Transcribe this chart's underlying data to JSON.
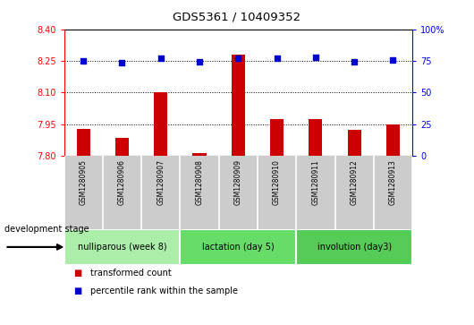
{
  "title": "GDS5361 / 10409352",
  "samples": [
    "GSM1280905",
    "GSM1280906",
    "GSM1280907",
    "GSM1280908",
    "GSM1280909",
    "GSM1280910",
    "GSM1280911",
    "GSM1280912",
    "GSM1280913"
  ],
  "transformed_counts": [
    7.93,
    7.885,
    8.1,
    7.815,
    8.28,
    7.975,
    7.975,
    7.925,
    7.95
  ],
  "percentile_ranks": [
    75,
    73.5,
    77,
    74.5,
    77,
    77,
    78,
    74.5,
    75.5
  ],
  "ylim_left": [
    7.8,
    8.4
  ],
  "ylim_right": [
    0,
    100
  ],
  "yticks_left": [
    7.8,
    7.95,
    8.1,
    8.25,
    8.4
  ],
  "yticks_right": [
    0,
    25,
    50,
    75,
    100
  ],
  "bar_color": "#cc0000",
  "dot_color": "#0000cc",
  "groups": [
    {
      "label": "nulliparous (week 8)",
      "start": 0,
      "end": 3,
      "color": "#aaeeaa"
    },
    {
      "label": "lactation (day 5)",
      "start": 3,
      "end": 6,
      "color": "#66dd66"
    },
    {
      "label": "involution (day3)",
      "start": 6,
      "end": 9,
      "color": "#55cc55"
    }
  ],
  "legend_items": [
    {
      "label": "transformed count",
      "color": "#cc0000"
    },
    {
      "label": "percentile rank within the sample",
      "color": "#0000cc"
    }
  ],
  "dev_stage_label": "development stage",
  "sample_bg_color": "#cccccc",
  "background_color": "#ffffff",
  "plot_bg_color": "#ffffff"
}
